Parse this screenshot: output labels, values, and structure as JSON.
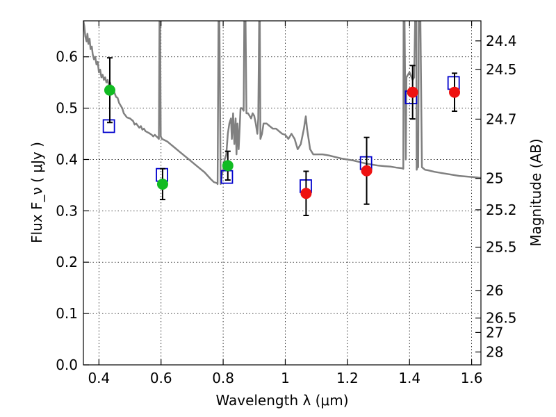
{
  "chart_data": {
    "type": "scatter",
    "title": "",
    "xlabel": "Wavelength  λ (μm)",
    "ylabel": "Flux  F_ν  ( μJy )",
    "y2label": "Magnitude (AB)",
    "xlim": [
      0.35,
      1.63
    ],
    "ylim": [
      0.0,
      0.67
    ],
    "grid": true,
    "x_ticks": [
      0.4,
      0.6,
      0.8,
      1.0,
      1.2,
      1.4,
      1.6
    ],
    "x_tick_labels": [
      "0.4",
      "0.6",
      "0.8",
      "1",
      "1.2",
      "1.4",
      "1.6"
    ],
    "y_ticks": [
      0.0,
      0.1,
      0.2,
      0.3,
      0.4,
      0.5,
      0.6
    ],
    "y_tick_labels": [
      "0.0",
      "0.1",
      "0.2",
      "0.3",
      "0.4",
      "0.5",
      "0.6"
    ],
    "mag_ticks": [
      {
        "flux": 0.0251,
        "label": "28"
      },
      {
        "flux": 0.0631,
        "label": "27"
      },
      {
        "flux": 0.0912,
        "label": "26.5"
      },
      {
        "flux": 0.1445,
        "label": "26"
      },
      {
        "flux": 0.2291,
        "label": "25.5"
      },
      {
        "flux": 0.302,
        "label": "25.2"
      },
      {
        "flux": 0.3631,
        "label": "25"
      },
      {
        "flux": 0.4786,
        "label": "24.7"
      },
      {
        "flux": 0.5754,
        "label": "24.5"
      },
      {
        "flux": 0.631,
        "label": "24.4"
      }
    ],
    "colors": {
      "model": "#808080",
      "green": "#11bb22",
      "red": "#ee1111",
      "model_box": "#0000cc",
      "errorbar": "#000000"
    },
    "series": [
      {
        "kind": "model_spectrum",
        "points": [
          [
            0.35,
            0.67
          ],
          [
            0.353,
            0.66
          ],
          [
            0.356,
            0.64
          ],
          [
            0.36,
            0.63
          ],
          [
            0.363,
            0.645
          ],
          [
            0.366,
            0.625
          ],
          [
            0.37,
            0.635
          ],
          [
            0.373,
            0.615
          ],
          [
            0.377,
            0.62
          ],
          [
            0.38,
            0.605
          ],
          [
            0.384,
            0.595
          ],
          [
            0.388,
            0.6
          ],
          [
            0.392,
            0.585
          ],
          [
            0.396,
            0.59
          ],
          [
            0.4,
            0.57
          ],
          [
            0.404,
            0.575
          ],
          [
            0.408,
            0.56
          ],
          [
            0.412,
            0.565
          ],
          [
            0.416,
            0.555
          ],
          [
            0.42,
            0.56
          ],
          [
            0.424,
            0.55
          ],
          [
            0.428,
            0.555
          ],
          [
            0.432,
            0.545
          ],
          [
            0.436,
            0.55
          ],
          [
            0.44,
            0.54
          ],
          [
            0.445,
            0.535
          ],
          [
            0.45,
            0.53
          ],
          [
            0.455,
            0.522
          ],
          [
            0.46,
            0.52
          ],
          [
            0.465,
            0.51
          ],
          [
            0.47,
            0.505
          ],
          [
            0.475,
            0.5
          ],
          [
            0.48,
            0.49
          ],
          [
            0.49,
            0.482
          ],
          [
            0.5,
            0.48
          ],
          [
            0.51,
            0.475
          ],
          [
            0.515,
            0.468
          ],
          [
            0.52,
            0.47
          ],
          [
            0.53,
            0.462
          ],
          [
            0.535,
            0.465
          ],
          [
            0.54,
            0.458
          ],
          [
            0.545,
            0.46
          ],
          [
            0.55,
            0.455
          ],
          [
            0.56,
            0.452
          ],
          [
            0.565,
            0.45
          ],
          [
            0.57,
            0.448
          ],
          [
            0.575,
            0.445
          ],
          [
            0.58,
            0.448
          ],
          [
            0.585,
            0.445
          ],
          [
            0.59,
            0.442
          ],
          [
            0.593,
            0.44
          ],
          [
            0.595,
            0.67
          ],
          [
            0.597,
            0.67
          ],
          [
            0.599,
            0.445
          ],
          [
            0.603,
            0.44
          ],
          [
            0.61,
            0.438
          ],
          [
            0.62,
            0.435
          ],
          [
            0.63,
            0.43
          ],
          [
            0.64,
            0.425
          ],
          [
            0.66,
            0.415
          ],
          [
            0.68,
            0.405
          ],
          [
            0.7,
            0.395
          ],
          [
            0.72,
            0.385
          ],
          [
            0.74,
            0.375
          ],
          [
            0.76,
            0.362
          ],
          [
            0.77,
            0.356
          ],
          [
            0.78,
            0.354
          ],
          [
            0.782,
            0.352
          ],
          [
            0.785,
            0.67
          ],
          [
            0.788,
            0.67
          ],
          [
            0.792,
            0.352
          ],
          [
            0.796,
            0.37
          ],
          [
            0.8,
            0.38
          ],
          [
            0.805,
            0.4
          ],
          [
            0.81,
            0.41
          ],
          [
            0.815,
            0.45
          ],
          [
            0.82,
            0.47
          ],
          [
            0.825,
            0.48
          ],
          [
            0.828,
            0.44
          ],
          [
            0.832,
            0.49
          ],
          [
            0.836,
            0.43
          ],
          [
            0.84,
            0.48
          ],
          [
            0.843,
            0.41
          ],
          [
            0.846,
            0.47
          ],
          [
            0.85,
            0.42
          ],
          [
            0.853,
            0.46
          ],
          [
            0.856,
            0.5
          ],
          [
            0.86,
            0.5
          ],
          [
            0.863,
            0.498
          ],
          [
            0.866,
            0.495
          ],
          [
            0.868,
            0.67
          ],
          [
            0.872,
            0.67
          ],
          [
            0.875,
            0.49
          ],
          [
            0.88,
            0.49
          ],
          [
            0.885,
            0.485
          ],
          [
            0.89,
            0.48
          ],
          [
            0.895,
            0.49
          ],
          [
            0.9,
            0.485
          ],
          [
            0.905,
            0.47
          ],
          [
            0.91,
            0.45
          ],
          [
            0.913,
            0.48
          ],
          [
            0.916,
            0.67
          ],
          [
            0.918,
            0.67
          ],
          [
            0.92,
            0.44
          ],
          [
            0.925,
            0.45
          ],
          [
            0.93,
            0.47
          ],
          [
            0.94,
            0.47
          ],
          [
            0.95,
            0.465
          ],
          [
            0.96,
            0.46
          ],
          [
            0.97,
            0.46
          ],
          [
            0.98,
            0.455
          ],
          [
            0.99,
            0.45
          ],
          [
            1.0,
            0.448
          ],
          [
            1.01,
            0.44
          ],
          [
            1.02,
            0.45
          ],
          [
            1.03,
            0.44
          ],
          [
            1.04,
            0.42
          ],
          [
            1.05,
            0.43
          ],
          [
            1.06,
            0.46
          ],
          [
            1.066,
            0.484
          ],
          [
            1.07,
            0.46
          ],
          [
            1.08,
            0.42
          ],
          [
            1.09,
            0.41
          ],
          [
            1.1,
            0.41
          ],
          [
            1.12,
            0.41
          ],
          [
            1.14,
            0.408
          ],
          [
            1.16,
            0.405
          ],
          [
            1.18,
            0.402
          ],
          [
            1.2,
            0.4
          ],
          [
            1.22,
            0.398
          ],
          [
            1.24,
            0.395
          ],
          [
            1.26,
            0.392
          ],
          [
            1.28,
            0.39
          ],
          [
            1.3,
            0.388
          ],
          [
            1.32,
            0.387
          ],
          [
            1.34,
            0.386
          ],
          [
            1.36,
            0.384
          ],
          [
            1.375,
            0.383
          ],
          [
            1.38,
            0.382
          ],
          [
            1.381,
            0.67
          ],
          [
            1.384,
            0.67
          ],
          [
            1.388,
            0.4
          ],
          [
            1.39,
            0.56
          ],
          [
            1.4,
            0.57
          ],
          [
            1.41,
            0.555
          ],
          [
            1.415,
            0.56
          ],
          [
            1.418,
            0.67
          ],
          [
            1.422,
            0.67
          ],
          [
            1.423,
            0.38
          ],
          [
            1.425,
            0.385
          ],
          [
            1.428,
            0.385
          ],
          [
            1.43,
            0.67
          ],
          [
            1.435,
            0.67
          ],
          [
            1.44,
            0.385
          ],
          [
            1.45,
            0.38
          ],
          [
            1.46,
            0.379
          ],
          [
            1.48,
            0.376
          ],
          [
            1.5,
            0.374
          ],
          [
            1.52,
            0.372
          ],
          [
            1.54,
            0.37
          ],
          [
            1.56,
            0.368
          ],
          [
            1.58,
            0.367
          ],
          [
            1.6,
            0.366
          ],
          [
            1.615,
            0.365
          ],
          [
            1.63,
            0.364
          ]
        ]
      },
      {
        "kind": "observed_green",
        "points": [
          {
            "x": 0.435,
            "y": 0.535,
            "err": 0.063
          },
          {
            "x": 0.605,
            "y": 0.352,
            "err": 0.03
          },
          {
            "x": 0.815,
            "y": 0.388,
            "err": 0.028
          }
        ]
      },
      {
        "kind": "observed_red",
        "points": [
          {
            "x": 1.067,
            "y": 0.334,
            "err": 0.043
          },
          {
            "x": 1.262,
            "y": 0.378,
            "err": 0.065
          },
          {
            "x": 1.41,
            "y": 0.531,
            "err": 0.052
          },
          {
            "x": 1.545,
            "y": 0.531,
            "err": 0.037
          }
        ]
      },
      {
        "kind": "model_photometry",
        "points": [
          {
            "x": 0.432,
            "y": 0.465
          },
          {
            "x": 0.603,
            "y": 0.37
          },
          {
            "x": 0.812,
            "y": 0.366
          },
          {
            "x": 1.066,
            "y": 0.348
          },
          {
            "x": 1.26,
            "y": 0.393
          },
          {
            "x": 1.405,
            "y": 0.521
          },
          {
            "x": 1.542,
            "y": 0.549
          }
        ]
      }
    ]
  }
}
